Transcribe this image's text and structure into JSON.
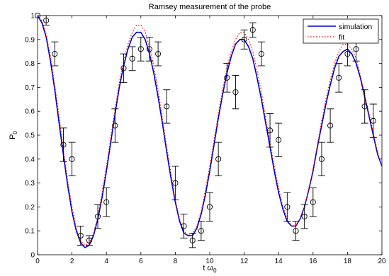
{
  "chart_data": {
    "type": "line",
    "title": "Ramsey measurement of the probe",
    "xlabel": "t ω",
    "xlabel_sub": "0",
    "ylabel": "P",
    "ylabel_sub": "0",
    "xlim": [
      0,
      20
    ],
    "ylim": [
      0,
      1
    ],
    "xticks": [
      0,
      2,
      4,
      6,
      8,
      10,
      12,
      14,
      16,
      18,
      20
    ],
    "yticks": [
      0,
      0.1,
      0.2,
      0.3,
      0.4,
      0.5,
      0.6,
      0.7,
      0.8,
      0.9,
      1
    ],
    "xtick_labels": [
      "0",
      "2",
      "4",
      "6",
      "8",
      "10",
      "12",
      "14",
      "16",
      "18",
      "20"
    ],
    "ytick_labels": [
      "0",
      "0.1",
      "0.2",
      "0.3",
      "0.4",
      "0.5",
      "0.6",
      "0.7",
      "0.8",
      "0.9",
      "1"
    ],
    "grid": false,
    "legend_position": "top-right",
    "series": [
      {
        "name": "simulation",
        "style": "solid",
        "color": "#0000cc",
        "x": [
          0,
          0.25,
          0.5,
          0.75,
          1,
          1.25,
          1.5,
          1.75,
          2,
          2.25,
          2.5,
          2.75,
          3,
          3.25,
          3.5,
          3.75,
          4,
          4.25,
          4.5,
          4.75,
          5,
          5.25,
          5.5,
          5.75,
          6,
          6.25,
          6.5,
          6.75,
          7,
          7.25,
          7.5,
          7.75,
          8,
          8.25,
          8.5,
          8.75,
          9,
          9.25,
          9.5,
          9.75,
          10,
          10.25,
          10.5,
          10.75,
          11,
          11.25,
          11.5,
          11.75,
          12,
          12.25,
          12.5,
          12.75,
          13,
          13.25,
          13.5,
          13.75,
          14,
          14.25,
          14.5,
          14.75,
          15,
          15.25,
          15.5,
          15.75,
          16,
          16.25,
          16.5,
          16.75,
          17,
          17.25,
          17.5,
          17.75,
          18,
          18.25,
          18.5,
          18.75,
          19,
          19.25,
          19.5,
          19.75,
          20
        ],
        "y": [
          1,
          0.97,
          0.91,
          0.81,
          0.69,
          0.55,
          0.42,
          0.29,
          0.18,
          0.1,
          0.05,
          0.03,
          0.04,
          0.08,
          0.15,
          0.24,
          0.35,
          0.47,
          0.59,
          0.7,
          0.79,
          0.86,
          0.91,
          0.93,
          0.93,
          0.9,
          0.84,
          0.76,
          0.66,
          0.55,
          0.43,
          0.32,
          0.22,
          0.14,
          0.09,
          0.08,
          0.08,
          0.11,
          0.17,
          0.25,
          0.35,
          0.46,
          0.57,
          0.67,
          0.76,
          0.83,
          0.88,
          0.9,
          0.9,
          0.87,
          0.82,
          0.74,
          0.65,
          0.55,
          0.45,
          0.35,
          0.26,
          0.19,
          0.14,
          0.12,
          0.12,
          0.15,
          0.2,
          0.27,
          0.35,
          0.45,
          0.54,
          0.63,
          0.71,
          0.78,
          0.83,
          0.85,
          0.86,
          0.84,
          0.8,
          0.74,
          0.66,
          0.58,
          0.5,
          0.42,
          0.37
        ]
      },
      {
        "name": "fit",
        "style": "dotted",
        "color": "#ff0000",
        "x": [
          0,
          0.25,
          0.5,
          0.75,
          1,
          1.25,
          1.5,
          1.75,
          2,
          2.25,
          2.5,
          2.75,
          3,
          3.25,
          3.5,
          3.75,
          4,
          4.25,
          4.5,
          4.75,
          5,
          5.25,
          5.5,
          5.75,
          6,
          6.25,
          6.5,
          6.75,
          7,
          7.25,
          7.5,
          7.75,
          8,
          8.25,
          8.5,
          8.75,
          9,
          9.25,
          9.5,
          9.75,
          10,
          10.25,
          10.5,
          10.75,
          11,
          11.25,
          11.5,
          11.75,
          12,
          12.25,
          12.5,
          12.75,
          13,
          13.25,
          13.5,
          13.75,
          14,
          14.25,
          14.5,
          14.75,
          15,
          15.25,
          15.5,
          15.75,
          16,
          16.25,
          16.5,
          16.75,
          17,
          17.25,
          17.5,
          17.75,
          18,
          18.25,
          18.5,
          18.75,
          19,
          19.25,
          19.5,
          19.75,
          20
        ],
        "y": [
          1,
          0.98,
          0.92,
          0.83,
          0.71,
          0.58,
          0.44,
          0.31,
          0.2,
          0.11,
          0.06,
          0.04,
          0.05,
          0.09,
          0.16,
          0.26,
          0.37,
          0.49,
          0.61,
          0.72,
          0.81,
          0.88,
          0.93,
          0.96,
          0.96,
          0.93,
          0.87,
          0.79,
          0.69,
          0.57,
          0.45,
          0.34,
          0.23,
          0.15,
          0.1,
          0.08,
          0.09,
          0.12,
          0.18,
          0.27,
          0.37,
          0.48,
          0.59,
          0.69,
          0.78,
          0.85,
          0.9,
          0.93,
          0.93,
          0.9,
          0.85,
          0.77,
          0.68,
          0.57,
          0.47,
          0.37,
          0.28,
          0.2,
          0.15,
          0.12,
          0.12,
          0.15,
          0.2,
          0.27,
          0.36,
          0.46,
          0.56,
          0.65,
          0.73,
          0.8,
          0.85,
          0.88,
          0.88,
          0.86,
          0.82,
          0.75,
          0.67,
          0.59,
          0.51,
          0.43,
          0.37
        ]
      },
      {
        "name": "",
        "style": "markers-errorbars",
        "color": "#000000",
        "x": [
          0,
          0.5,
          1,
          1.5,
          2,
          2.5,
          3,
          3.5,
          4,
          4.5,
          5,
          5.5,
          6,
          6.5,
          7,
          7.5,
          8,
          8.5,
          9,
          9.5,
          10,
          10.5,
          11,
          11.5,
          12,
          12.5,
          13,
          13.5,
          14,
          14.5,
          15,
          15.5,
          16,
          16.5,
          17,
          17.5,
          18,
          18.5,
          19,
          19.5
        ],
        "y": [
          1.0,
          0.98,
          0.84,
          0.46,
          0.4,
          0.08,
          0.06,
          0.16,
          0.22,
          0.54,
          0.78,
          0.82,
          0.86,
          0.86,
          0.84,
          0.62,
          0.3,
          0.12,
          0.06,
          0.1,
          0.2,
          0.4,
          0.74,
          0.68,
          0.9,
          0.94,
          0.84,
          0.52,
          0.48,
          0.2,
          0.1,
          0.16,
          0.22,
          0.4,
          0.54,
          0.74,
          0.84,
          0.86,
          0.62,
          0.56
        ],
        "err": [
          0,
          0.02,
          0.05,
          0.07,
          0.07,
          0.04,
          0.02,
          0.05,
          0.06,
          0.07,
          0.06,
          0.05,
          0.05,
          0.05,
          0.05,
          0.07,
          0.07,
          0.05,
          0.03,
          0.04,
          0.06,
          0.07,
          0.06,
          0.07,
          0.04,
          0.03,
          0.05,
          0.07,
          0.07,
          0.06,
          0.04,
          0.05,
          0.06,
          0.07,
          0.07,
          0.06,
          0.05,
          0.05,
          0.07,
          0.07
        ]
      }
    ]
  }
}
